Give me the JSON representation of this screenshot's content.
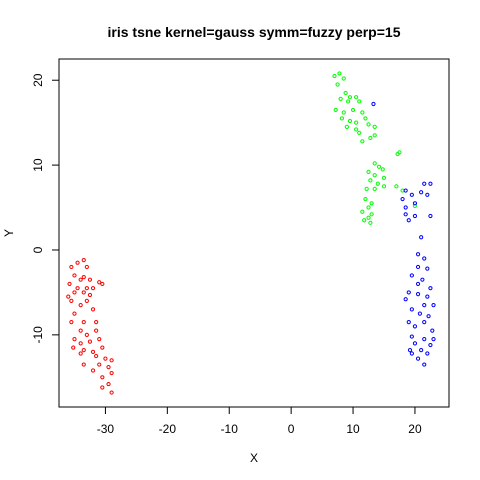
{
  "chart_data": {
    "type": "scatter",
    "title": "iris tsne kernel=gauss symm=fuzzy perp=15",
    "xlabel": "X",
    "ylabel": "Y",
    "xlim": [
      -37.5,
      25.5
    ],
    "ylim": [
      -18.5,
      22.5
    ],
    "x_ticks": [
      -30,
      -20,
      -10,
      0,
      10,
      20
    ],
    "y_ticks": [
      -10,
      0,
      10,
      20
    ],
    "grid": false,
    "legend": "none",
    "series": [
      {
        "color": "#FF0000",
        "points": [
          [
            -35.5,
            -2
          ],
          [
            -34.5,
            -1.5
          ],
          [
            -33.5,
            -1.2
          ],
          [
            -33,
            -2
          ],
          [
            -35,
            -3
          ],
          [
            -34,
            -3.5
          ],
          [
            -33.5,
            -3.2
          ],
          [
            -32.5,
            -3.5
          ],
          [
            -31,
            -3.8
          ],
          [
            -35.8,
            -4
          ],
          [
            -34.5,
            -4.5
          ],
          [
            -33,
            -4.5
          ],
          [
            -32,
            -4.5
          ],
          [
            -30.5,
            -4
          ],
          [
            -36,
            -5.5
          ],
          [
            -35,
            -5
          ],
          [
            -33.5,
            -5
          ],
          [
            -32.5,
            -5.3
          ],
          [
            -35.5,
            -6
          ],
          [
            -34,
            -6.5
          ],
          [
            -33,
            -6
          ],
          [
            -35,
            -7.5
          ],
          [
            -32,
            -7
          ],
          [
            -35.5,
            -8.5
          ],
          [
            -33.5,
            -8.5
          ],
          [
            -31.5,
            -8.5
          ],
          [
            -34,
            -9.5
          ],
          [
            -33,
            -10
          ],
          [
            -31.5,
            -9.5
          ],
          [
            -35,
            -10.5
          ],
          [
            -34,
            -11
          ],
          [
            -32.5,
            -10.8
          ],
          [
            -31,
            -10.5
          ],
          [
            -35.2,
            -11.5
          ],
          [
            -33.5,
            -11.8
          ],
          [
            -32,
            -12
          ],
          [
            -30.5,
            -11.5
          ],
          [
            -34,
            -12.2
          ],
          [
            -31.5,
            -12.5
          ],
          [
            -30,
            -12.8
          ],
          [
            -29,
            -13
          ],
          [
            -33.5,
            -13.5
          ],
          [
            -31,
            -13.5
          ],
          [
            -29.5,
            -13.8
          ],
          [
            -32,
            -14.2
          ],
          [
            -29,
            -14.5
          ],
          [
            -30.5,
            -15
          ],
          [
            -29.5,
            -15.8
          ],
          [
            -30.5,
            -16.2
          ],
          [
            -29,
            -16.8
          ]
        ]
      },
      {
        "color": "#00FF00",
        "points": [
          [
            7,
            20.5
          ],
          [
            7.8,
            20.8
          ],
          [
            8.5,
            20.2
          ],
          [
            7.5,
            19.5
          ],
          [
            8.8,
            18.5
          ],
          [
            9.5,
            18
          ],
          [
            8,
            17.8
          ],
          [
            9.2,
            17.5
          ],
          [
            10.5,
            18
          ],
          [
            11,
            17.5
          ],
          [
            7.2,
            16.5
          ],
          [
            8.5,
            16.2
          ],
          [
            10,
            16.5
          ],
          [
            11.5,
            16.2
          ],
          [
            8.2,
            15.5
          ],
          [
            9.5,
            15.2
          ],
          [
            10.5,
            15
          ],
          [
            12,
            15.5
          ],
          [
            9,
            14.5
          ],
          [
            10.5,
            14.2
          ],
          [
            12.5,
            14.8
          ],
          [
            13.5,
            14.5
          ],
          [
            11,
            13.8
          ],
          [
            12.8,
            13.2
          ],
          [
            11.5,
            12.8
          ],
          [
            13.5,
            13.5
          ],
          [
            17.5,
            11.5
          ],
          [
            17.2,
            11.3
          ],
          [
            13.5,
            10.2
          ],
          [
            14.2,
            9.8
          ],
          [
            14.8,
            9.5
          ],
          [
            12.5,
            9.2
          ],
          [
            13.5,
            8.8
          ],
          [
            15,
            8.5
          ],
          [
            12.8,
            8.2
          ],
          [
            14,
            7.8
          ],
          [
            12.2,
            7.2
          ],
          [
            13.5,
            7.2
          ],
          [
            15,
            7.5
          ],
          [
            17,
            7.5
          ],
          [
            18,
            7
          ],
          [
            12,
            6
          ],
          [
            13,
            5.5
          ],
          [
            12.5,
            5
          ],
          [
            11.5,
            4.5
          ],
          [
            13,
            4.2
          ],
          [
            12.5,
            3.8
          ],
          [
            11.8,
            3.5
          ],
          [
            12.8,
            3.2
          ],
          [
            20,
            5.2
          ]
        ]
      },
      {
        "color": "#0000FF",
        "points": [
          [
            13.3,
            17.2
          ],
          [
            21.5,
            7.8
          ],
          [
            22.5,
            7.8
          ],
          [
            18.5,
            7
          ],
          [
            21,
            6.8
          ],
          [
            22,
            6.5
          ],
          [
            19.5,
            6.5
          ],
          [
            18,
            6
          ],
          [
            20,
            5.5
          ],
          [
            18.5,
            5
          ],
          [
            18.5,
            4.2
          ],
          [
            20,
            4
          ],
          [
            22.5,
            4
          ],
          [
            19,
            3.5
          ],
          [
            21,
            1.5
          ],
          [
            20.5,
            -0.5
          ],
          [
            21.5,
            -1
          ],
          [
            20.5,
            -2
          ],
          [
            22,
            -2.2
          ],
          [
            19.5,
            -3
          ],
          [
            21.2,
            -3.5
          ],
          [
            20.5,
            -4
          ],
          [
            22.5,
            -4.5
          ],
          [
            19,
            -5
          ],
          [
            20.5,
            -5.2
          ],
          [
            22,
            -5.5
          ],
          [
            18.5,
            -5.8
          ],
          [
            21.5,
            -6.5
          ],
          [
            23,
            -6.5
          ],
          [
            19.5,
            -7
          ],
          [
            20.8,
            -7.5
          ],
          [
            22.2,
            -7.8
          ],
          [
            19,
            -8.5
          ],
          [
            21.5,
            -8.5
          ],
          [
            20,
            -9
          ],
          [
            22.8,
            -9.5
          ],
          [
            19.5,
            -10.2
          ],
          [
            21.5,
            -10.5
          ],
          [
            23,
            -10.5
          ],
          [
            20,
            -11
          ],
          [
            22.5,
            -11.2
          ],
          [
            19.2,
            -11.8
          ],
          [
            21,
            -11.8
          ],
          [
            19.5,
            -12.2
          ],
          [
            22,
            -12.2
          ],
          [
            20.5,
            -12.8
          ],
          [
            21.5,
            -13.5
          ]
        ]
      }
    ]
  }
}
